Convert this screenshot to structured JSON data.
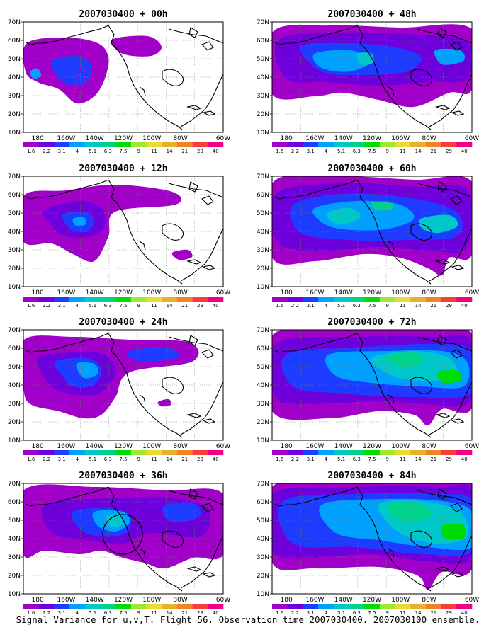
{
  "caption": "Signal Variance for u,v,T. Flight 56. Observation time 2007030400. 2007030100 ensemble.",
  "lon_labels": [
    "180",
    "160W",
    "140W",
    "120W",
    "100W",
    "80W",
    "60W"
  ],
  "lat_labels": [
    "10N",
    "20N",
    "30N",
    "40N",
    "50N",
    "60N",
    "70N"
  ],
  "colorbar": {
    "labels": [
      "1.6",
      "2.2",
      "3.1",
      "4",
      "5.1",
      "6.3",
      "7.5",
      "9",
      "11",
      "14",
      "21",
      "29",
      "40"
    ],
    "colors": [
      "#a000c8",
      "#6e00dc",
      "#1e3cff",
      "#00a0ff",
      "#00c8c8",
      "#00d28c",
      "#00dc00",
      "#a0e632",
      "#e6dc32",
      "#e6af2d",
      "#f08228",
      "#fa3c3c",
      "#f00082"
    ]
  },
  "panels": [
    {
      "title": "2007030400 + 00h",
      "col": 0,
      "row": 0
    },
    {
      "title": "2007030400 + 48h",
      "col": 1,
      "row": 0
    },
    {
      "title": "2007030400 + 12h",
      "col": 0,
      "row": 1
    },
    {
      "title": "2007030400 + 60h",
      "col": 1,
      "row": 1
    },
    {
      "title": "2007030400 + 24h",
      "col": 0,
      "row": 2
    },
    {
      "title": "2007030400 + 72h",
      "col": 1,
      "row": 2
    },
    {
      "title": "2007030400 + 36h",
      "col": 0,
      "row": 3
    },
    {
      "title": "2007030400 + 84h",
      "col": 1,
      "row": 3
    }
  ]
}
